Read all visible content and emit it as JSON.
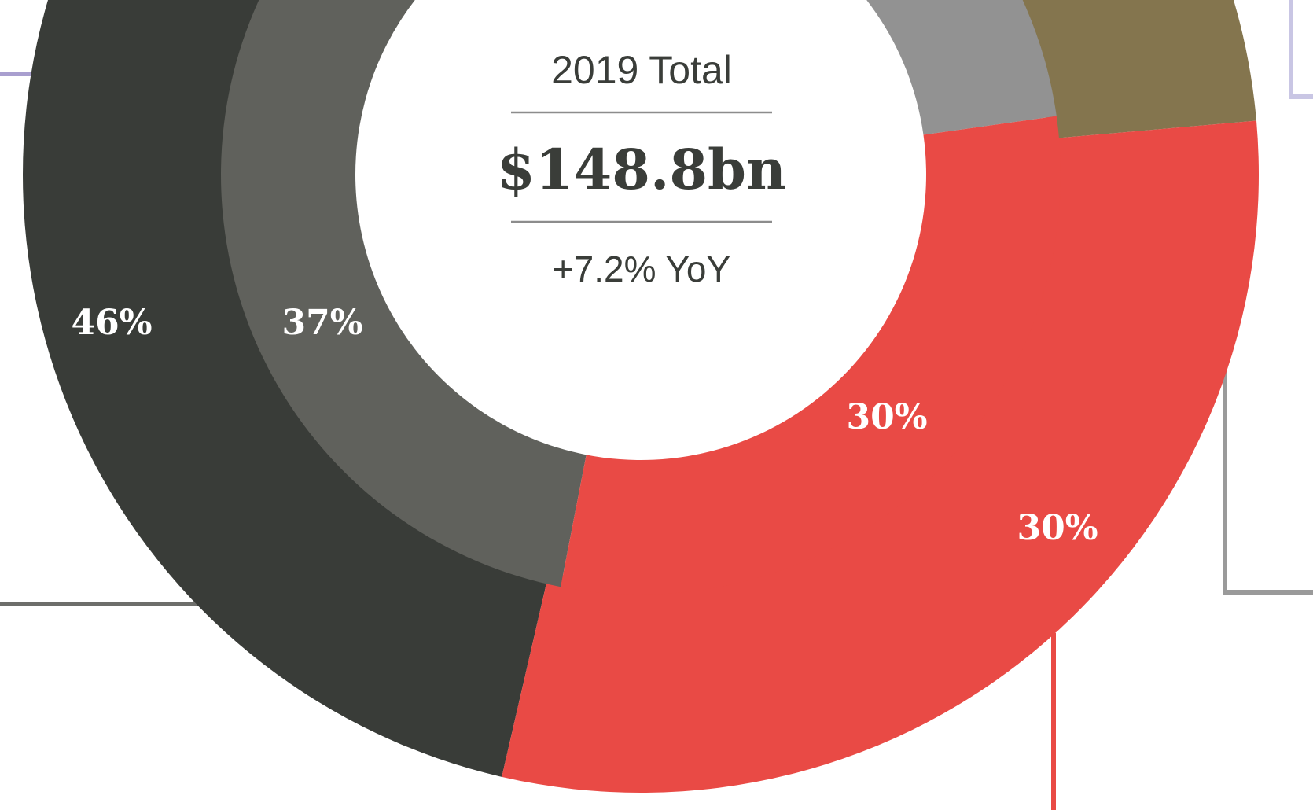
{
  "chart_data": {
    "type": "pie",
    "subtype": "nested-donut",
    "center": {
      "title": "2019 Total",
      "value": "$148.8bn",
      "change": "+7.2% YoY"
    },
    "rings": [
      {
        "ring": "outer",
        "slices": [
          {
            "label": "46%",
            "value": 46,
            "color": "#393c38"
          },
          {
            "label": "",
            "value": 8,
            "color": "#84754e"
          },
          {
            "label": "30%",
            "value": 30,
            "color": "#e94a45"
          }
        ]
      },
      {
        "ring": "inner",
        "slices": [
          {
            "label": "37%",
            "value": 37,
            "color": "#60615c"
          },
          {
            "label": "",
            "value": 7,
            "color": "#929292"
          },
          {
            "label": "30%",
            "value": 30,
            "color": "#e94a45"
          }
        ]
      }
    ],
    "leader_line_colors": [
      "#a99fcf",
      "#6d6e6b",
      "#9a9a9a",
      "#e94a45",
      "#c9c6e4"
    ]
  }
}
